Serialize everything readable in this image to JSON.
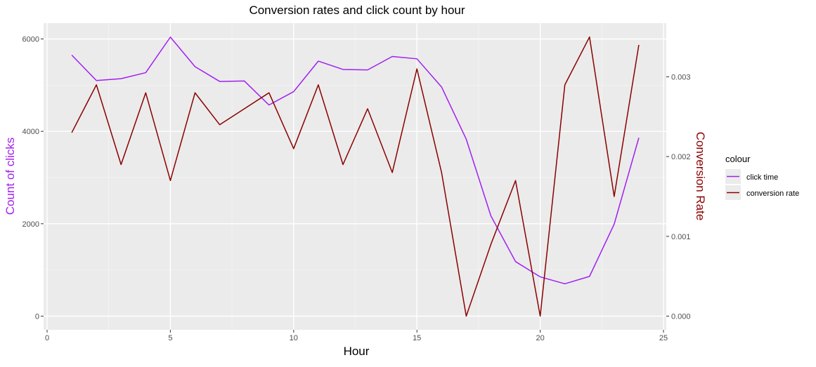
{
  "chart_data": {
    "type": "line",
    "title": "Conversion rates and click count by hour",
    "xlabel": "Hour",
    "ylabel_left": "Count of clicks",
    "ylabel_right": "Conversion Rate",
    "xlim": [
      0,
      25
    ],
    "ylim_left": [
      0,
      6000
    ],
    "ylim_right": [
      0,
      0.0035
    ],
    "x_ticks": [
      0,
      5,
      10,
      15,
      20,
      25
    ],
    "y_left_ticks": [
      0,
      2000,
      4000,
      6000
    ],
    "y_right_ticks": [
      0.0,
      0.001,
      0.002,
      0.003
    ],
    "y_right_tick_labels": [
      "0.000",
      "0.001",
      "0.002",
      "0.003"
    ],
    "grid": true,
    "legend": {
      "title": "colour",
      "placement": "right",
      "entries": [
        "click time",
        "conversion rate"
      ]
    },
    "x": [
      1,
      2,
      3,
      4,
      5,
      6,
      7,
      8,
      9,
      10,
      11,
      12,
      13,
      14,
      15,
      16,
      17,
      18,
      19,
      20,
      21,
      22,
      23,
      24
    ],
    "series": [
      {
        "name": "click time",
        "axis": "left",
        "color": "#a020f0",
        "values": [
          5650,
          5100,
          5140,
          5270,
          6040,
          5400,
          5080,
          5090,
          4570,
          4860,
          5520,
          5340,
          5330,
          5620,
          5570,
          4960,
          3830,
          2170,
          1180,
          850,
          700,
          860,
          1990,
          3860
        ]
      },
      {
        "name": "conversion rate",
        "axis": "right",
        "color": "#8b0000",
        "values": [
          0.0023,
          0.0029,
          0.0019,
          0.0028,
          0.0017,
          0.0028,
          0.0024,
          0.0026,
          0.0028,
          0.0021,
          0.0029,
          0.0019,
          0.0026,
          0.0018,
          0.0031,
          0.0018,
          0.0,
          0.0009,
          0.0017,
          0.0,
          0.0029,
          0.0035,
          0.0015,
          0.0034
        ]
      }
    ]
  }
}
